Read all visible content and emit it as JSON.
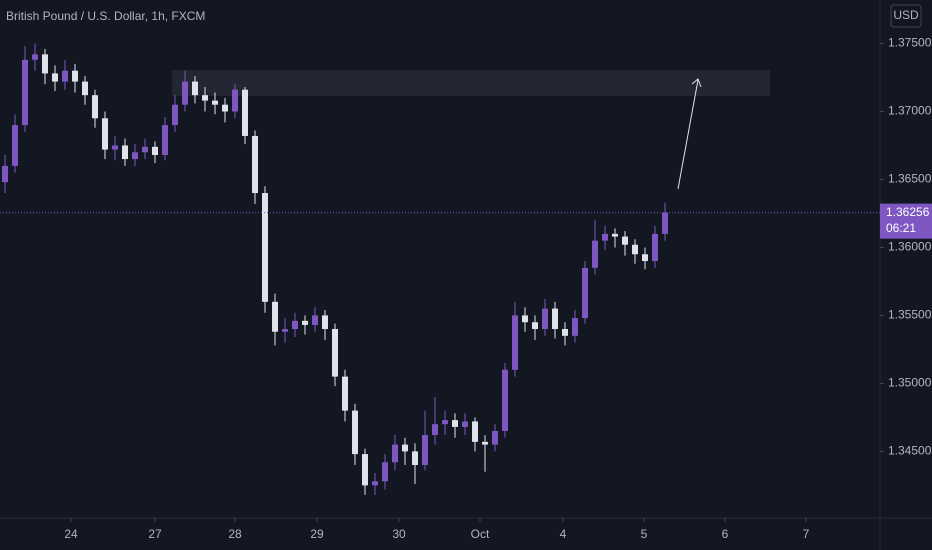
{
  "chart_data": {
    "type": "candlestick",
    "title": "British Pound / U.S. Dollar, 1h, FXCM",
    "currency": "USD",
    "up_color": "#7e57c2",
    "down_color": "#e0e3eb",
    "ohlc": {
      "open": [
        1.3648,
        1.366,
        1.369,
        1.3738,
        1.3742,
        1.3728,
        1.3722,
        1.373,
        1.3722,
        1.3712,
        1.3695,
        1.3672,
        1.3675,
        1.3665,
        1.367,
        1.3674,
        1.3668,
        1.369,
        1.3705,
        1.3722,
        1.3712,
        1.3708,
        1.3705,
        1.37,
        1.3716,
        1.3682,
        1.364,
        1.356,
        1.3538,
        1.354,
        1.3546,
        1.3543,
        1.355,
        1.354,
        1.3505,
        1.348,
        1.3448,
        1.3425,
        1.3428,
        1.3442,
        1.3455,
        1.345,
        1.344,
        1.3462,
        1.347,
        1.3473,
        1.3468,
        1.3472,
        1.3457,
        1.3455,
        1.3465,
        1.351,
        1.355,
        1.3545,
        1.354,
        1.3555,
        1.354,
        1.3535,
        1.3548,
        1.3585,
        1.3605,
        1.361,
        1.3608,
        1.3602,
        1.3595,
        1.359,
        1.361
      ],
      "high": [
        1.3668,
        1.3698,
        1.3748,
        1.375,
        1.3746,
        1.3734,
        1.3738,
        1.3735,
        1.3726,
        1.3716,
        1.37,
        1.3682,
        1.368,
        1.3676,
        1.368,
        1.3678,
        1.3696,
        1.3712,
        1.373,
        1.3726,
        1.3718,
        1.3714,
        1.371,
        1.372,
        1.3718,
        1.3686,
        1.3645,
        1.3566,
        1.3548,
        1.3552,
        1.355,
        1.3556,
        1.3554,
        1.3544,
        1.351,
        1.3485,
        1.3452,
        1.3434,
        1.3448,
        1.3462,
        1.346,
        1.3456,
        1.348,
        1.349,
        1.348,
        1.3478,
        1.3478,
        1.3475,
        1.3462,
        1.347,
        1.3515,
        1.356,
        1.3556,
        1.355,
        1.3562,
        1.356,
        1.3545,
        1.3554,
        1.359,
        1.362,
        1.3616,
        1.3614,
        1.3612,
        1.3606,
        1.36,
        1.3616,
        1.3633
      ],
      "low": [
        1.364,
        1.3655,
        1.3685,
        1.373,
        1.372,
        1.3715,
        1.3716,
        1.3714,
        1.3705,
        1.3688,
        1.3665,
        1.3664,
        1.366,
        1.366,
        1.3665,
        1.3662,
        1.3664,
        1.3685,
        1.37,
        1.3706,
        1.37,
        1.3698,
        1.3692,
        1.3695,
        1.3676,
        1.3632,
        1.3552,
        1.3528,
        1.353,
        1.3534,
        1.3536,
        1.3538,
        1.3532,
        1.3498,
        1.3472,
        1.344,
        1.3418,
        1.3418,
        1.3422,
        1.3436,
        1.344,
        1.3426,
        1.3436,
        1.3455,
        1.3462,
        1.346,
        1.3462,
        1.345,
        1.3435,
        1.345,
        1.346,
        1.3505,
        1.3538,
        1.3532,
        1.3535,
        1.3533,
        1.3528,
        1.353,
        1.3544,
        1.358,
        1.3598,
        1.36,
        1.3594,
        1.3588,
        1.3584,
        1.3585,
        1.3605
      ],
      "close": [
        1.366,
        1.369,
        1.3738,
        1.3742,
        1.3728,
        1.3722,
        1.373,
        1.3722,
        1.3712,
        1.3695,
        1.3672,
        1.3675,
        1.3665,
        1.367,
        1.3674,
        1.3668,
        1.369,
        1.3705,
        1.3722,
        1.3712,
        1.3708,
        1.3705,
        1.37,
        1.3716,
        1.3682,
        1.364,
        1.356,
        1.3538,
        1.354,
        1.3546,
        1.3543,
        1.355,
        1.354,
        1.3505,
        1.348,
        1.3448,
        1.3425,
        1.3428,
        1.3442,
        1.3455,
        1.345,
        1.344,
        1.3462,
        1.347,
        1.3473,
        1.3468,
        1.3472,
        1.3457,
        1.3455,
        1.3465,
        1.351,
        1.355,
        1.3545,
        1.354,
        1.3555,
        1.354,
        1.3535,
        1.3548,
        1.3585,
        1.3605,
        1.361,
        1.3608,
        1.3602,
        1.3595,
        1.359,
        1.361,
        1.36256
      ]
    },
    "last_price": {
      "value": 1.36256,
      "label": "1.36256"
    },
    "countdown": "06:21",
    "ylim": [
      1.3401,
      1.3782
    ],
    "yticks": [
      {
        "value": 1.375,
        "label": "1.37500"
      },
      {
        "value": 1.37,
        "label": "1.37000"
      },
      {
        "value": 1.365,
        "label": "1.36500"
      },
      {
        "value": 1.36,
        "label": "1.36000"
      },
      {
        "value": 1.355,
        "label": "1.35500"
      },
      {
        "value": 1.35,
        "label": "1.35000"
      },
      {
        "value": 1.345,
        "label": "1.34500"
      }
    ],
    "xlim": [
      -0.5,
      87.5
    ],
    "xticks": [
      {
        "value": 6.6,
        "label": "24"
      },
      {
        "value": 15,
        "label": "27"
      },
      {
        "value": 23,
        "label": "28"
      },
      {
        "value": 31.2,
        "label": "29"
      },
      {
        "value": 39.4,
        "label": "30"
      },
      {
        "value": 47.5,
        "label": "Oct"
      },
      {
        "value": 55.8,
        "label": "4"
      },
      {
        "value": 63.9,
        "label": "5"
      },
      {
        "value": 72,
        "label": "6"
      },
      {
        "value": 80.1,
        "label": "7"
      }
    ]
  }
}
